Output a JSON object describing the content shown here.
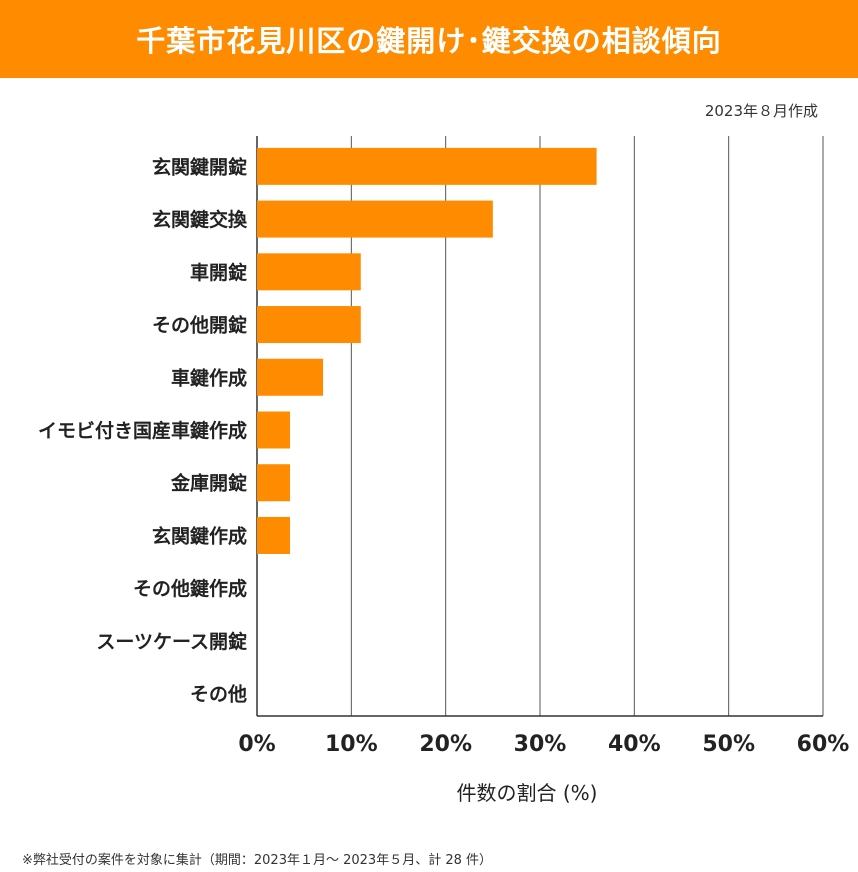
{
  "title": "千葉市花見川区の鍵開け･鍵交換の相談傾向",
  "date_label": "2023年８月作成",
  "footnote": "※弊社受付の案件を対象に集計（期間：2023年１月～ 2023年５月、計 28 件）",
  "colors": {
    "bar": "#ff8c00",
    "title_bg": "#ff8c00",
    "grid": "#555555"
  },
  "chart_data": {
    "type": "bar",
    "orientation": "horizontal",
    "categories": [
      "玄関鍵開錠",
      "玄関鍵交換",
      "車開錠",
      "その他開錠",
      "車鍵作成",
      "イモビ付き国産車鍵作成",
      "金庫開錠",
      "玄関鍵作成",
      "その他鍵作成",
      "スーツケース開錠",
      "その他"
    ],
    "values": [
      36,
      25,
      11,
      11,
      7,
      3.5,
      3.5,
      3.5,
      0,
      0,
      0
    ],
    "xlabel": "件数の割合 (%)",
    "xlim": [
      0,
      60
    ],
    "xticks": [
      0,
      10,
      20,
      30,
      40,
      50,
      60
    ],
    "xtick_labels": [
      "0%",
      "10%",
      "20%",
      "30%",
      "40%",
      "50%",
      "60%"
    ],
    "grid": "vertical"
  }
}
